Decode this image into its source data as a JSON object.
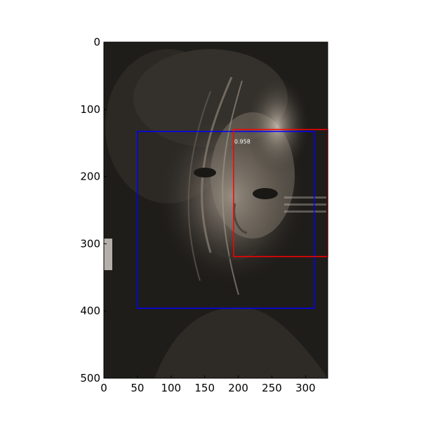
{
  "image_extent": {
    "x": [
      0,
      333
    ],
    "y": [
      0,
      500
    ]
  },
  "axes": {
    "x_ticks": [
      0,
      50,
      100,
      150,
      200,
      250,
      300
    ],
    "y_ticks": [
      0,
      100,
      200,
      300,
      400,
      500
    ]
  },
  "detections": [
    {
      "name": "blue-box",
      "color": "#0000ff",
      "x0": 50,
      "y0": 133,
      "x1": 313,
      "y1": 396
    },
    {
      "name": "red-box",
      "color": "#ff0000",
      "x0": 193,
      "y0": 130,
      "x1": 333,
      "y1": 319,
      "score": "0.958"
    }
  ],
  "colors": {
    "photo_bg": "#1f1d1a",
    "score_text": "#ffffff"
  }
}
